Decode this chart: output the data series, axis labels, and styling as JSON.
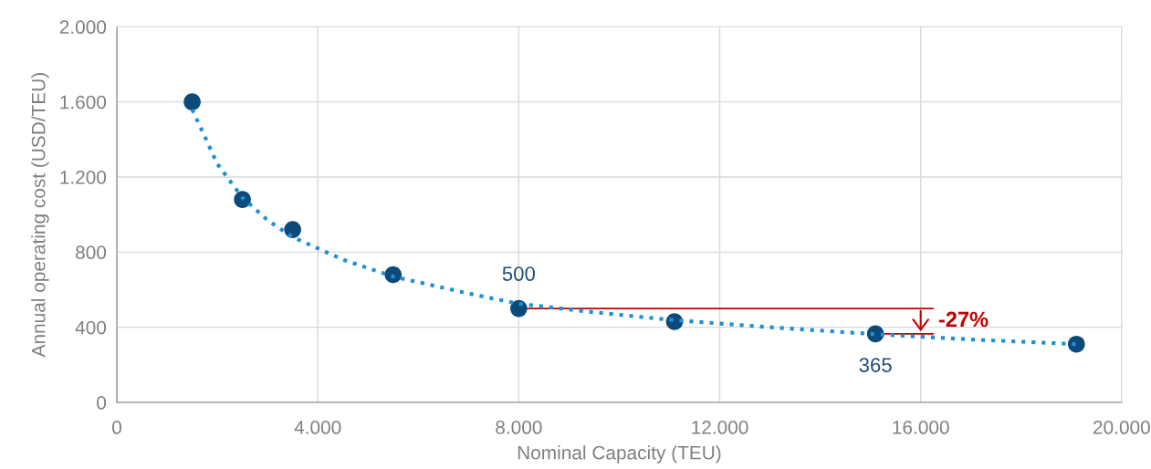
{
  "chart_data": {
    "type": "scatter",
    "xlabel": "Nominal Capacity (TEU)",
    "ylabel": "Annual operating cost (USD/TEU)",
    "series": [
      {
        "color": "#0b4a7a",
        "marker": "circle",
        "x": [
          1500,
          2500,
          3500,
          5500,
          8000,
          11100,
          15100,
          19100
        ],
        "values": [
          1600,
          1080,
          920,
          680,
          500,
          430,
          365,
          310
        ],
        "value_labels": [
          null,
          null,
          null,
          null,
          "500",
          null,
          "365",
          null
        ]
      },
      {
        "type": "line",
        "color": "#1f8fd6",
        "marker": "none",
        "line_style": "dotted",
        "x": [
          1500,
          2000,
          2500,
          3000,
          3500,
          4500,
          5500,
          7000,
          8000,
          9500,
          11000,
          13000,
          15000,
          17000,
          19100
        ],
        "values": [
          1560,
          1270,
          1090,
          970,
          880,
          760,
          670,
          580,
          525,
          480,
          440,
          400,
          365,
          335,
          310
        ]
      }
    ],
    "annotations": [
      {
        "text": "-27%",
        "x": 15100,
        "y": 365
      }
    ],
    "xlim": [
      0,
      20000
    ],
    "ylim": [
      0,
      2000
    ],
    "xticks": [
      {
        "value": 0,
        "label": "0"
      },
      {
        "value": 4000,
        "label": "4.000"
      },
      {
        "value": 8000,
        "label": "8.000"
      },
      {
        "value": 12000,
        "label": "12.000"
      },
      {
        "value": 16000,
        "label": "16.000"
      },
      {
        "value": 20000,
        "label": "20.000"
      }
    ],
    "yticks": [
      {
        "value": 0,
        "label": "0"
      },
      {
        "value": 400,
        "label": "400"
      },
      {
        "value": 800,
        "label": "800"
      },
      {
        "value": 1200,
        "label": "1.200"
      },
      {
        "value": 1600,
        "label": "1.600"
      },
      {
        "value": 2000,
        "label": "2.000"
      }
    ],
    "grid": true
  }
}
